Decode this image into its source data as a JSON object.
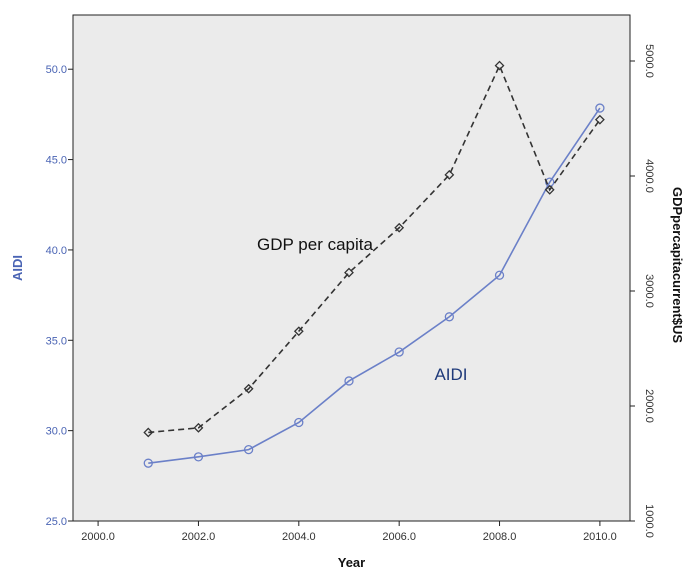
{
  "chart_data": {
    "type": "line",
    "title": "",
    "xlabel": "Year",
    "ylabel_left": "AIDI",
    "ylabel_right": "GDPpercapitacurrent$US",
    "x": [
      2001,
      2002,
      2003,
      2004,
      2005,
      2006,
      2007,
      2008,
      2009,
      2010
    ],
    "xlim": [
      1999.5,
      2010.6
    ],
    "ylim_left": [
      25.0,
      53.0
    ],
    "ylim_right": [
      1000.0,
      5400.0
    ],
    "x_ticks": [
      "2000.0",
      "2002.0",
      "2004.0",
      "2006.0",
      "2008.0",
      "2010.0"
    ],
    "y_left_ticks": [
      "25.0",
      "30.0",
      "35.0",
      "40.0",
      "45.0",
      "50.0"
    ],
    "y_right_ticks": [
      "1000.0",
      "2000.0",
      "3000.0",
      "4000.0",
      "5000.0"
    ],
    "grid": false,
    "series": [
      {
        "name": "AIDI",
        "axis": "left",
        "marker": "circle",
        "line_style": "solid",
        "color": "#6b80c8",
        "values": [
          28.2,
          28.55,
          28.95,
          30.45,
          32.75,
          34.35,
          36.3,
          38.6,
          43.75,
          47.85
        ]
      },
      {
        "name": "GDP per capita",
        "axis": "right",
        "marker": "diamond",
        "line_style": "dashed",
        "color": "#333333",
        "values": [
          1770,
          1810,
          2150,
          2650,
          3160,
          3550,
          4010,
          4960,
          3880,
          4490
        ]
      }
    ],
    "annotations": [
      "GDP per capita",
      "AIDI"
    ],
    "colors": {
      "plot_background": "#ebebeb",
      "left_axis_text": "#4a64b4",
      "annotation_aidi": "#1f3a7a"
    }
  }
}
